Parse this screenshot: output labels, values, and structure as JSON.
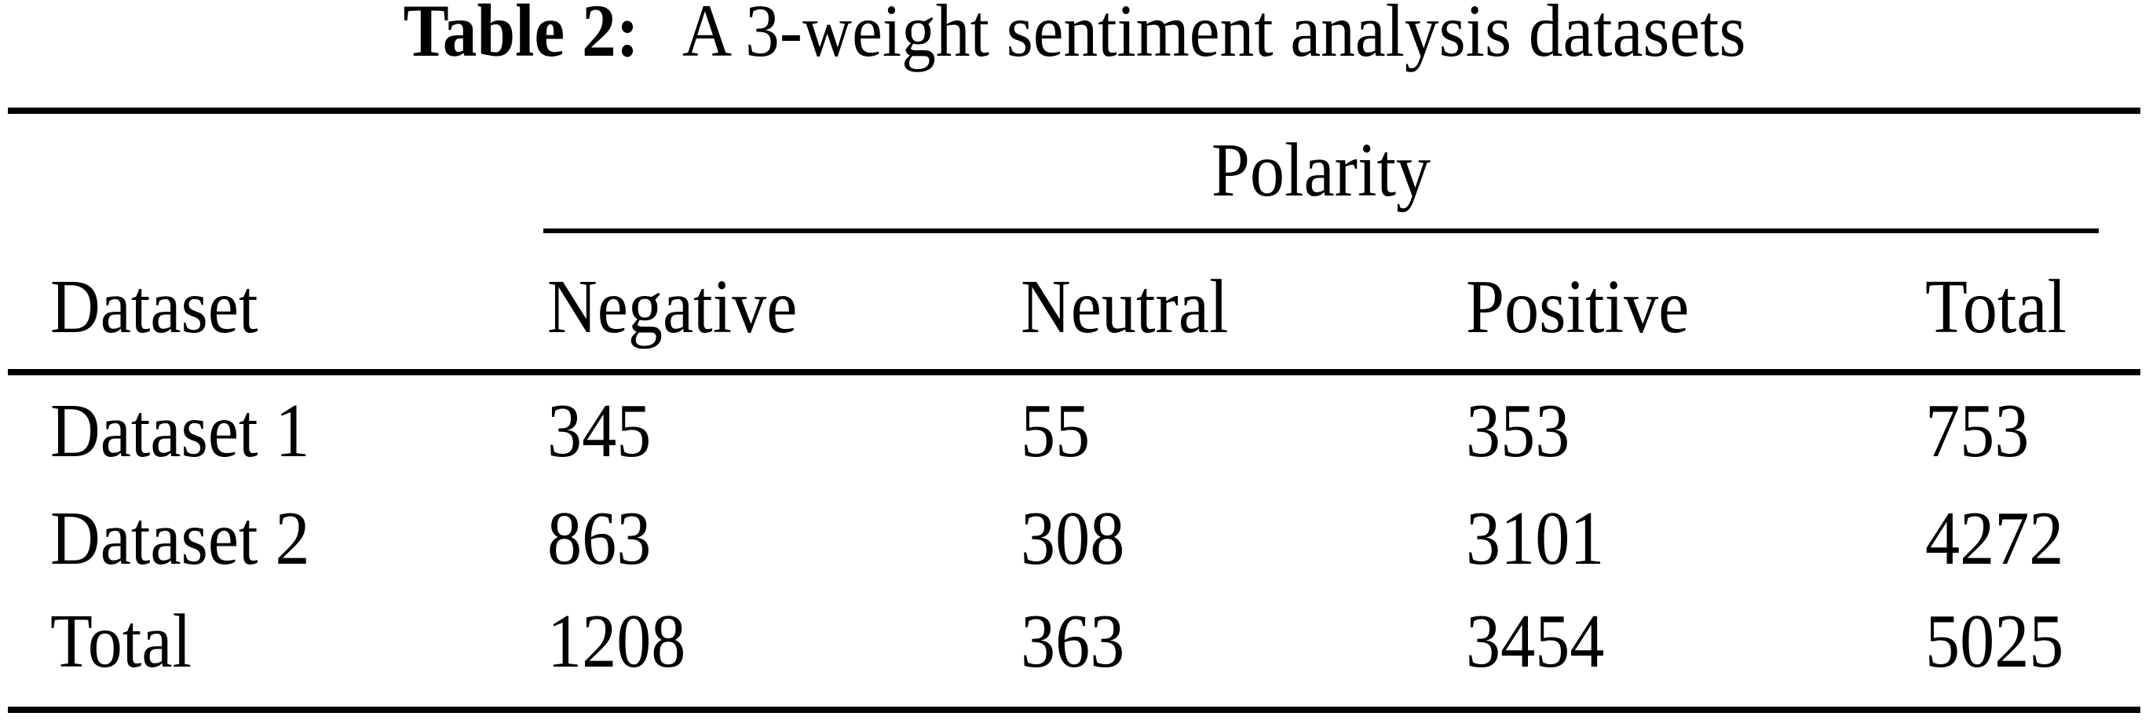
{
  "title": {
    "label": "Table 2:",
    "text": "A 3-weight sentiment analysis datasets"
  },
  "table": {
    "span_header": "Polarity",
    "columns": [
      "Dataset",
      "Negative",
      "Neutral",
      "Positive",
      "Total"
    ],
    "rows": [
      {
        "cells": [
          "Dataset 1",
          "345",
          "55",
          "353",
          "753"
        ]
      },
      {
        "cells": [
          "Dataset 2",
          "863",
          "308",
          "3101",
          "4272"
        ]
      },
      {
        "cells": [
          "Total",
          "1208",
          "363",
          "3454",
          "5025"
        ]
      }
    ]
  },
  "colors": {
    "text": "#000000",
    "background": "#ffffff",
    "rule": "#000000"
  }
}
